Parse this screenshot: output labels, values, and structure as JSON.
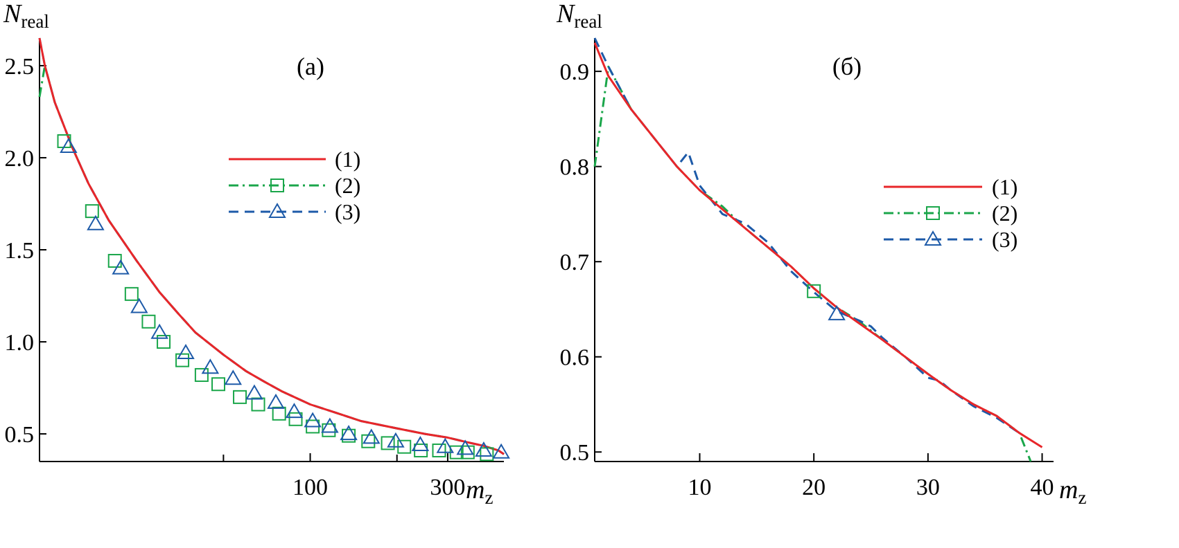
{
  "chart_data": [
    {
      "type": "line",
      "panel_label": "(a)",
      "ylabel": "N",
      "ylabel_sub": "real",
      "xlabel": "m",
      "xlabel_sub": "z",
      "x_scale": "log",
      "xlim": [
        11.5,
        470
      ],
      "ylim": [
        0.35,
        2.65
      ],
      "xticks": [
        {
          "value": 100,
          "label": "100"
        },
        {
          "value": 300,
          "label": "300"
        }
      ],
      "xticks_minor": [
        50,
        200
      ],
      "yticks": [
        {
          "value": 0.5,
          "label": "0.5"
        },
        {
          "value": 1.0,
          "label": "1.0"
        },
        {
          "value": 1.5,
          "label": "1.5"
        },
        {
          "value": 2.0,
          "label": "2.0"
        },
        {
          "value": 2.5,
          "label": "2.5"
        }
      ],
      "legend_position": "center-right",
      "series": [
        {
          "name": "(1)",
          "color": "#e8262a",
          "dash": "solid",
          "marker": "none",
          "x": [
            11.5,
            12,
            13,
            15,
            17,
            20,
            25,
            30,
            35,
            40,
            50,
            60,
            70,
            80,
            100,
            120,
            150,
            200,
            250,
            300,
            350,
            400,
            450,
            470
          ],
          "y": [
            2.65,
            2.5,
            2.3,
            2.05,
            1.86,
            1.66,
            1.44,
            1.27,
            1.15,
            1.05,
            0.93,
            0.84,
            0.78,
            0.73,
            0.66,
            0.62,
            0.57,
            0.53,
            0.5,
            0.48,
            0.455,
            0.435,
            0.41,
            0.39
          ]
        },
        {
          "name": "(2)",
          "color": "#1aa64a",
          "dash": "dashdot",
          "marker": "square",
          "x": [
            11.5,
            12,
            13,
            15,
            17,
            20,
            25,
            30,
            35,
            40,
            50,
            60,
            70,
            80,
            100,
            120,
            150,
            200,
            250,
            300,
            350,
            400,
            450,
            470
          ],
          "y": [
            2.33,
            2.5,
            2.3,
            2.05,
            1.86,
            1.66,
            1.44,
            1.27,
            1.15,
            1.05,
            0.93,
            0.84,
            0.78,
            0.73,
            0.66,
            0.62,
            0.57,
            0.53,
            0.5,
            0.48,
            0.455,
            0.435,
            0.41,
            0.39
          ],
          "marker_x": [
            14,
            17.5,
            21,
            24,
            27.5,
            31,
            36,
            42,
            48,
            57,
            66,
            78,
            89,
            102,
            116,
            136,
            159,
            186,
            212,
            242,
            280,
            322,
            352,
            410
          ],
          "marker_y": [
            2.09,
            1.71,
            1.44,
            1.26,
            1.11,
            1.0,
            0.9,
            0.82,
            0.77,
            0.7,
            0.66,
            0.61,
            0.58,
            0.54,
            0.52,
            0.49,
            0.46,
            0.45,
            0.43,
            0.41,
            0.41,
            0.4,
            0.4,
            0.39
          ]
        },
        {
          "name": "(3)",
          "color": "#1d5aa8",
          "dash": "dashed",
          "marker": "triangle",
          "x": [
            11.5,
            12,
            13,
            15,
            17,
            20,
            25,
            30,
            35,
            40,
            50,
            60,
            70,
            80,
            100,
            120,
            150,
            200,
            250,
            300,
            350,
            400,
            450,
            470
          ],
          "y": [
            2.65,
            2.5,
            2.3,
            2.05,
            1.86,
            1.66,
            1.44,
            1.27,
            1.15,
            1.05,
            0.93,
            0.84,
            0.78,
            0.73,
            0.66,
            0.62,
            0.57,
            0.53,
            0.5,
            0.48,
            0.455,
            0.435,
            0.41,
            0.39
          ],
          "marker_x": [
            14.5,
            18,
            22,
            25.5,
            30,
            37,
            45,
            54,
            64,
            76,
            88,
            102,
            117,
            136,
            163,
            198,
            241,
            294,
            345,
            400,
            460
          ],
          "marker_y": [
            2.06,
            1.64,
            1.4,
            1.19,
            1.05,
            0.94,
            0.86,
            0.8,
            0.72,
            0.67,
            0.62,
            0.57,
            0.54,
            0.5,
            0.48,
            0.46,
            0.44,
            0.43,
            0.42,
            0.41,
            0.4
          ]
        }
      ]
    },
    {
      "type": "line",
      "panel_label": "(б)",
      "ylabel": "N",
      "ylabel_sub": "real",
      "xlabel": "m",
      "xlabel_sub": "z",
      "x_scale": "linear",
      "xlim": [
        0.8,
        41
      ],
      "ylim": [
        0.49,
        0.935
      ],
      "xticks": [
        {
          "value": 10,
          "label": "10"
        },
        {
          "value": 20,
          "label": "20"
        },
        {
          "value": 30,
          "label": "30"
        },
        {
          "value": 40,
          "label": "40"
        }
      ],
      "xticks_minor": [],
      "yticks": [
        {
          "value": 0.5,
          "label": "0.5"
        },
        {
          "value": 0.6,
          "label": "0.6"
        },
        {
          "value": 0.7,
          "label": "0.7"
        },
        {
          "value": 0.8,
          "label": "0.8"
        },
        {
          "value": 0.9,
          "label": "0.9"
        }
      ],
      "legend_position": "right",
      "series": [
        {
          "name": "(1)",
          "color": "#e8262a",
          "dash": "solid",
          "marker": "none",
          "x": [
            0.8,
            2,
            4,
            6,
            8,
            10,
            12,
            14,
            16,
            18,
            20,
            22,
            24,
            26,
            28,
            30,
            32,
            34,
            36,
            38,
            40
          ],
          "y": [
            0.93,
            0.895,
            0.86,
            0.83,
            0.8,
            0.775,
            0.755,
            0.735,
            0.715,
            0.695,
            0.672,
            0.652,
            0.635,
            0.618,
            0.6,
            0.582,
            0.565,
            0.55,
            0.538,
            0.52,
            0.505
          ]
        },
        {
          "name": "(2)",
          "color": "#1aa64a",
          "dash": "dashdot",
          "marker": "square",
          "x": [
            0.8,
            2,
            4,
            6,
            8,
            10,
            12,
            14,
            16,
            18,
            20,
            22,
            24,
            26,
            28,
            30,
            32,
            34,
            36,
            38,
            39
          ],
          "y": [
            0.8,
            0.905,
            0.86,
            0.83,
            0.8,
            0.775,
            0.758,
            0.735,
            0.715,
            0.695,
            0.672,
            0.652,
            0.637,
            0.618,
            0.6,
            0.582,
            0.565,
            0.55,
            0.538,
            0.52,
            0.49
          ],
          "marker_x": [
            20
          ],
          "marker_y": [
            0.669
          ]
        },
        {
          "name": "(3)",
          "color": "#1d5aa8",
          "dash": "dashed",
          "marker": "triangle",
          "x": [
            0.8,
            2,
            4,
            6,
            8,
            9,
            10,
            12,
            14,
            15,
            16,
            18,
            20,
            22,
            24,
            25,
            26,
            28,
            30,
            31,
            32,
            34,
            36,
            38
          ],
          "y": [
            0.935,
            0.905,
            0.86,
            0.83,
            0.8,
            0.815,
            0.78,
            0.75,
            0.74,
            0.73,
            0.72,
            0.69,
            0.668,
            0.648,
            0.638,
            0.632,
            0.62,
            0.6,
            0.578,
            0.575,
            0.565,
            0.548,
            0.536,
            0.52
          ],
          "marker_x": [
            22
          ],
          "marker_y": [
            0.645
          ]
        }
      ]
    }
  ]
}
